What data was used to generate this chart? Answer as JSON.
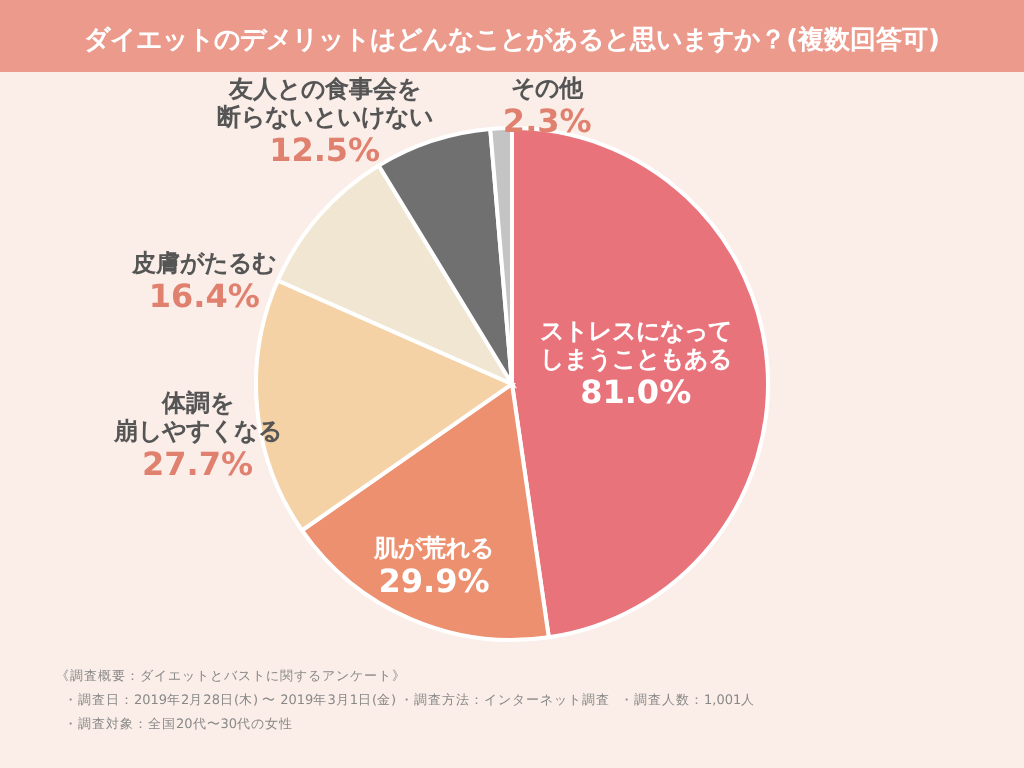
{
  "chart_data": {
    "type": "pie",
    "title": "ダイエットのデメリットはどんなことがあると思いますか？(複数回答可)",
    "categories": [
      "ストレスになってしまうこともある",
      "肌が荒れる",
      "体調を崩しやすくなる",
      "皮膚がたるむ",
      "友人との食事会を断らないといけない",
      "その他"
    ],
    "values": [
      81.0,
      29.9,
      27.7,
      16.4,
      12.5,
      2.3
    ],
    "value_labels": [
      "81.0%",
      "29.9%",
      "27.7%",
      "16.4%",
      "12.5%",
      "2.3%"
    ],
    "colors": [
      "#e9737b",
      "#ed9070",
      "#f5d2a6",
      "#f1e6d2",
      "#707070",
      "#c4c4c4"
    ],
    "annotations": [
      "《調査概要：ダイエットとバストに関するアンケート》",
      "・調査日：2019年2月28日(木) 〜 2019年3月1日(金)",
      "・調査方法：インターネット調査",
      "・調査人数：1,001人",
      "・調査対象：全国20代〜30代の女性"
    ]
  }
}
